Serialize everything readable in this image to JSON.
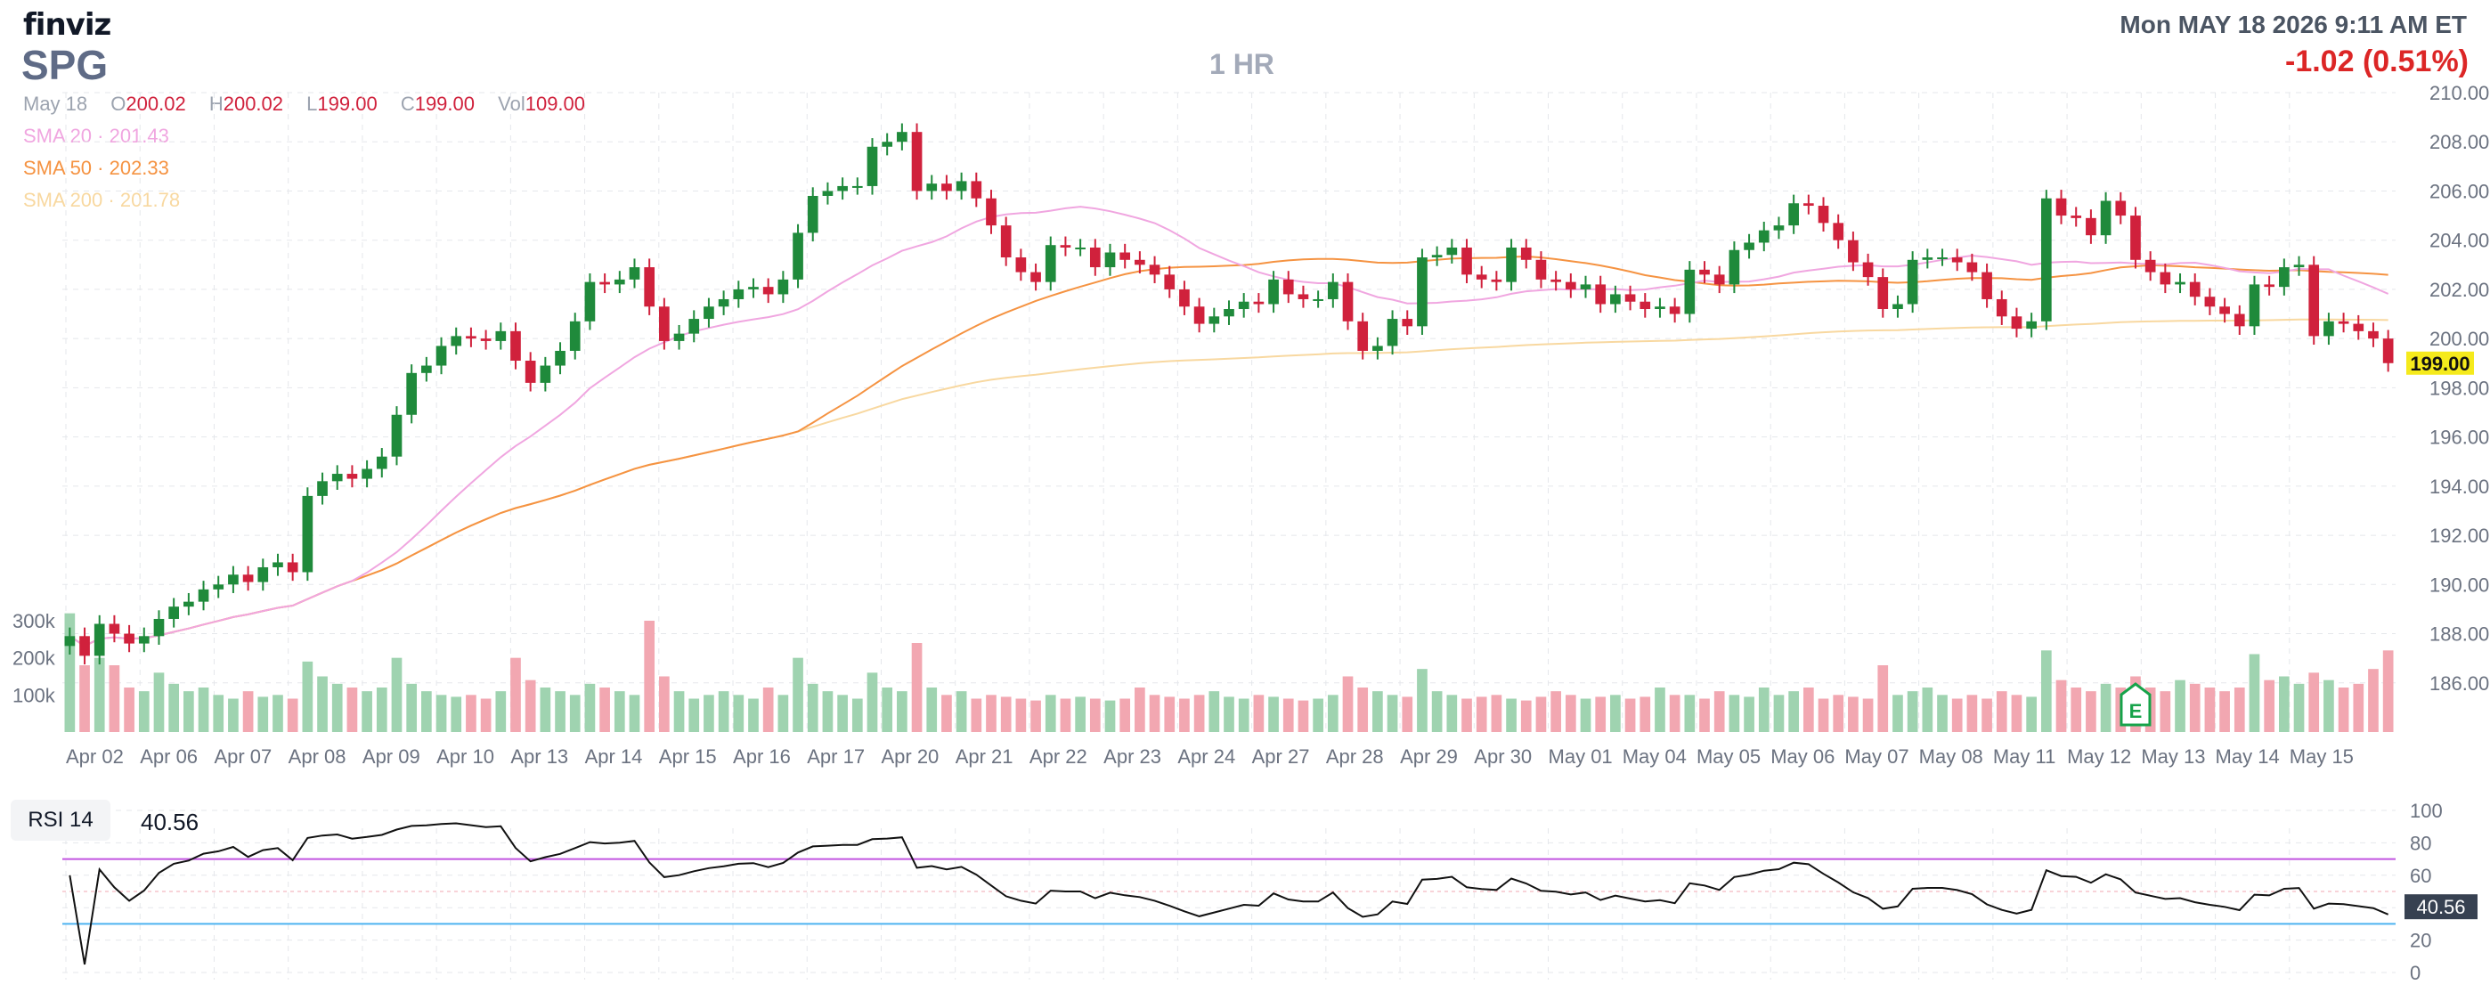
{
  "header": {
    "logo": "finviz",
    "ticker": "SPG",
    "timeframe": "1 HR",
    "datetime": "Mon MAY 18 2026 9:11 AM ET",
    "change": "-1.02 (0.51%)"
  },
  "legend": {
    "date": "May 18",
    "open_label": "O",
    "open": "200.02",
    "high_label": "H",
    "high": "200.02",
    "low_label": "L",
    "low": "199.00",
    "close_label": "C",
    "close": "199.00",
    "vol_label": "Vol",
    "vol": "109.00",
    "sma20": "SMA 20 · 201.43",
    "sma50": "SMA 50 · 202.33",
    "sma200": "SMA 200 · 201.78"
  },
  "rsi": {
    "label": "RSI 14",
    "value": "40.56"
  },
  "colors": {
    "up": "#1f8a3b",
    "down": "#d0213c",
    "vol_up": "#9fd3b0",
    "vol_down": "#f2a7b1",
    "sma20": "#f0a6e0",
    "sma50": "#f59342",
    "sma200": "#f8d8a0",
    "price_badge": "#f5ea1c",
    "rsi_badge": "#374151"
  },
  "chart_data": {
    "type": "candlestick",
    "price_axis": {
      "min": 184.0,
      "max": 210.0,
      "ticks": [
        "210.00",
        "208.00",
        "206.00",
        "204.00",
        "202.00",
        "200.00",
        "198.00",
        "196.00",
        "194.00",
        "192.00",
        "190.00",
        "188.00",
        "186.00"
      ]
    },
    "volume_axis": {
      "ticks": [
        "300k",
        "200k",
        "100k"
      ]
    },
    "x_labels": [
      "Apr 02",
      "Apr 06",
      "Apr 07",
      "Apr 08",
      "Apr 09",
      "Apr 10",
      "Apr 13",
      "Apr 14",
      "Apr 15",
      "Apr 16",
      "Apr 17",
      "Apr 20",
      "Apr 21",
      "Apr 22",
      "Apr 23",
      "Apr 24",
      "Apr 27",
      "Apr 28",
      "Apr 29",
      "Apr 30",
      "May 01",
      "May 04",
      "May 05",
      "May 06",
      "May 07",
      "May 08",
      "May 11",
      "May 12",
      "May 13",
      "May 14",
      "May 15"
    ],
    "current_price": "199.00",
    "earnings_marker": "E",
    "closes": [
      187.9,
      187.1,
      188.4,
      188.0,
      187.6,
      187.9,
      188.6,
      189.1,
      189.3,
      189.8,
      190.0,
      190.4,
      190.1,
      190.7,
      190.9,
      190.5,
      193.6,
      194.2,
      194.5,
      194.3,
      194.7,
      195.2,
      196.9,
      198.6,
      198.9,
      199.7,
      200.1,
      200.0,
      199.9,
      200.3,
      199.1,
      198.2,
      198.9,
      199.5,
      200.7,
      202.3,
      202.2,
      202.4,
      202.9,
      201.3,
      199.9,
      200.2,
      200.8,
      201.3,
      201.6,
      202.0,
      202.1,
      201.8,
      202.4,
      204.3,
      205.8,
      206.0,
      206.2,
      206.2,
      207.8,
      208.0,
      208.4,
      206.0,
      206.3,
      206.0,
      206.4,
      205.7,
      204.6,
      203.3,
      202.7,
      202.3,
      203.8,
      203.7,
      203.7,
      202.9,
      203.5,
      203.2,
      203.0,
      202.6,
      202.0,
      201.3,
      200.6,
      200.9,
      201.2,
      201.5,
      201.4,
      202.4,
      201.8,
      201.6,
      201.6,
      202.3,
      200.7,
      199.5,
      199.7,
      200.8,
      200.5,
      203.3,
      203.4,
      203.7,
      202.6,
      202.4,
      202.3,
      203.7,
      203.2,
      202.4,
      202.3,
      202.0,
      202.2,
      201.4,
      201.8,
      201.5,
      201.2,
      201.3,
      201.0,
      202.8,
      202.6,
      202.2,
      203.6,
      203.9,
      204.4,
      204.6,
      205.5,
      205.4,
      204.7,
      204.0,
      203.1,
      202.5,
      201.2,
      201.4,
      203.2,
      203.3,
      203.3,
      203.1,
      202.7,
      201.6,
      200.9,
      200.4,
      200.7,
      205.7,
      205.0,
      204.9,
      204.2,
      205.6,
      205.0,
      203.2,
      202.7,
      202.2,
      202.3,
      201.7,
      201.3,
      201.0,
      200.5,
      202.2,
      202.1,
      202.9,
      203.0,
      200.1,
      200.7,
      200.6,
      200.3,
      200.0,
      199.0
    ],
    "volumes": [
      320,
      180,
      200,
      180,
      120,
      110,
      160,
      130,
      110,
      120,
      100,
      90,
      110,
      95,
      100,
      90,
      190,
      150,
      130,
      120,
      110,
      120,
      200,
      130,
      110,
      100,
      95,
      100,
      90,
      110,
      200,
      140,
      120,
      110,
      100,
      130,
      120,
      110,
      100,
      300,
      150,
      110,
      90,
      100,
      110,
      100,
      90,
      120,
      100,
      200,
      130,
      110,
      100,
      90,
      160,
      120,
      110,
      240,
      120,
      100,
      110,
      90,
      100,
      95,
      90,
      85,
      100,
      90,
      95,
      90,
      85,
      90,
      120,
      100,
      95,
      90,
      100,
      110,
      95,
      90,
      100,
      95,
      90,
      85,
      90,
      100,
      150,
      120,
      110,
      100,
      95,
      170,
      110,
      100,
      90,
      95,
      100,
      90,
      85,
      95,
      110,
      100,
      90,
      95,
      100,
      90,
      95,
      120,
      100,
      100,
      90,
      110,
      100,
      95,
      120,
      100,
      110,
      120,
      90,
      100,
      95,
      90,
      180,
      100,
      110,
      120,
      100,
      90,
      100,
      90,
      110,
      100,
      95,
      220,
      140,
      120,
      110,
      130,
      120,
      150,
      120,
      110,
      140,
      130,
      120,
      110,
      120,
      210,
      140,
      150,
      130,
      160,
      140,
      120,
      130,
      170,
      220
    ],
    "rsi_axis": {
      "ticks": [
        "100",
        "80",
        "60",
        "40",
        "20",
        "0"
      ],
      "overbought": 70,
      "oversold": 30
    }
  }
}
